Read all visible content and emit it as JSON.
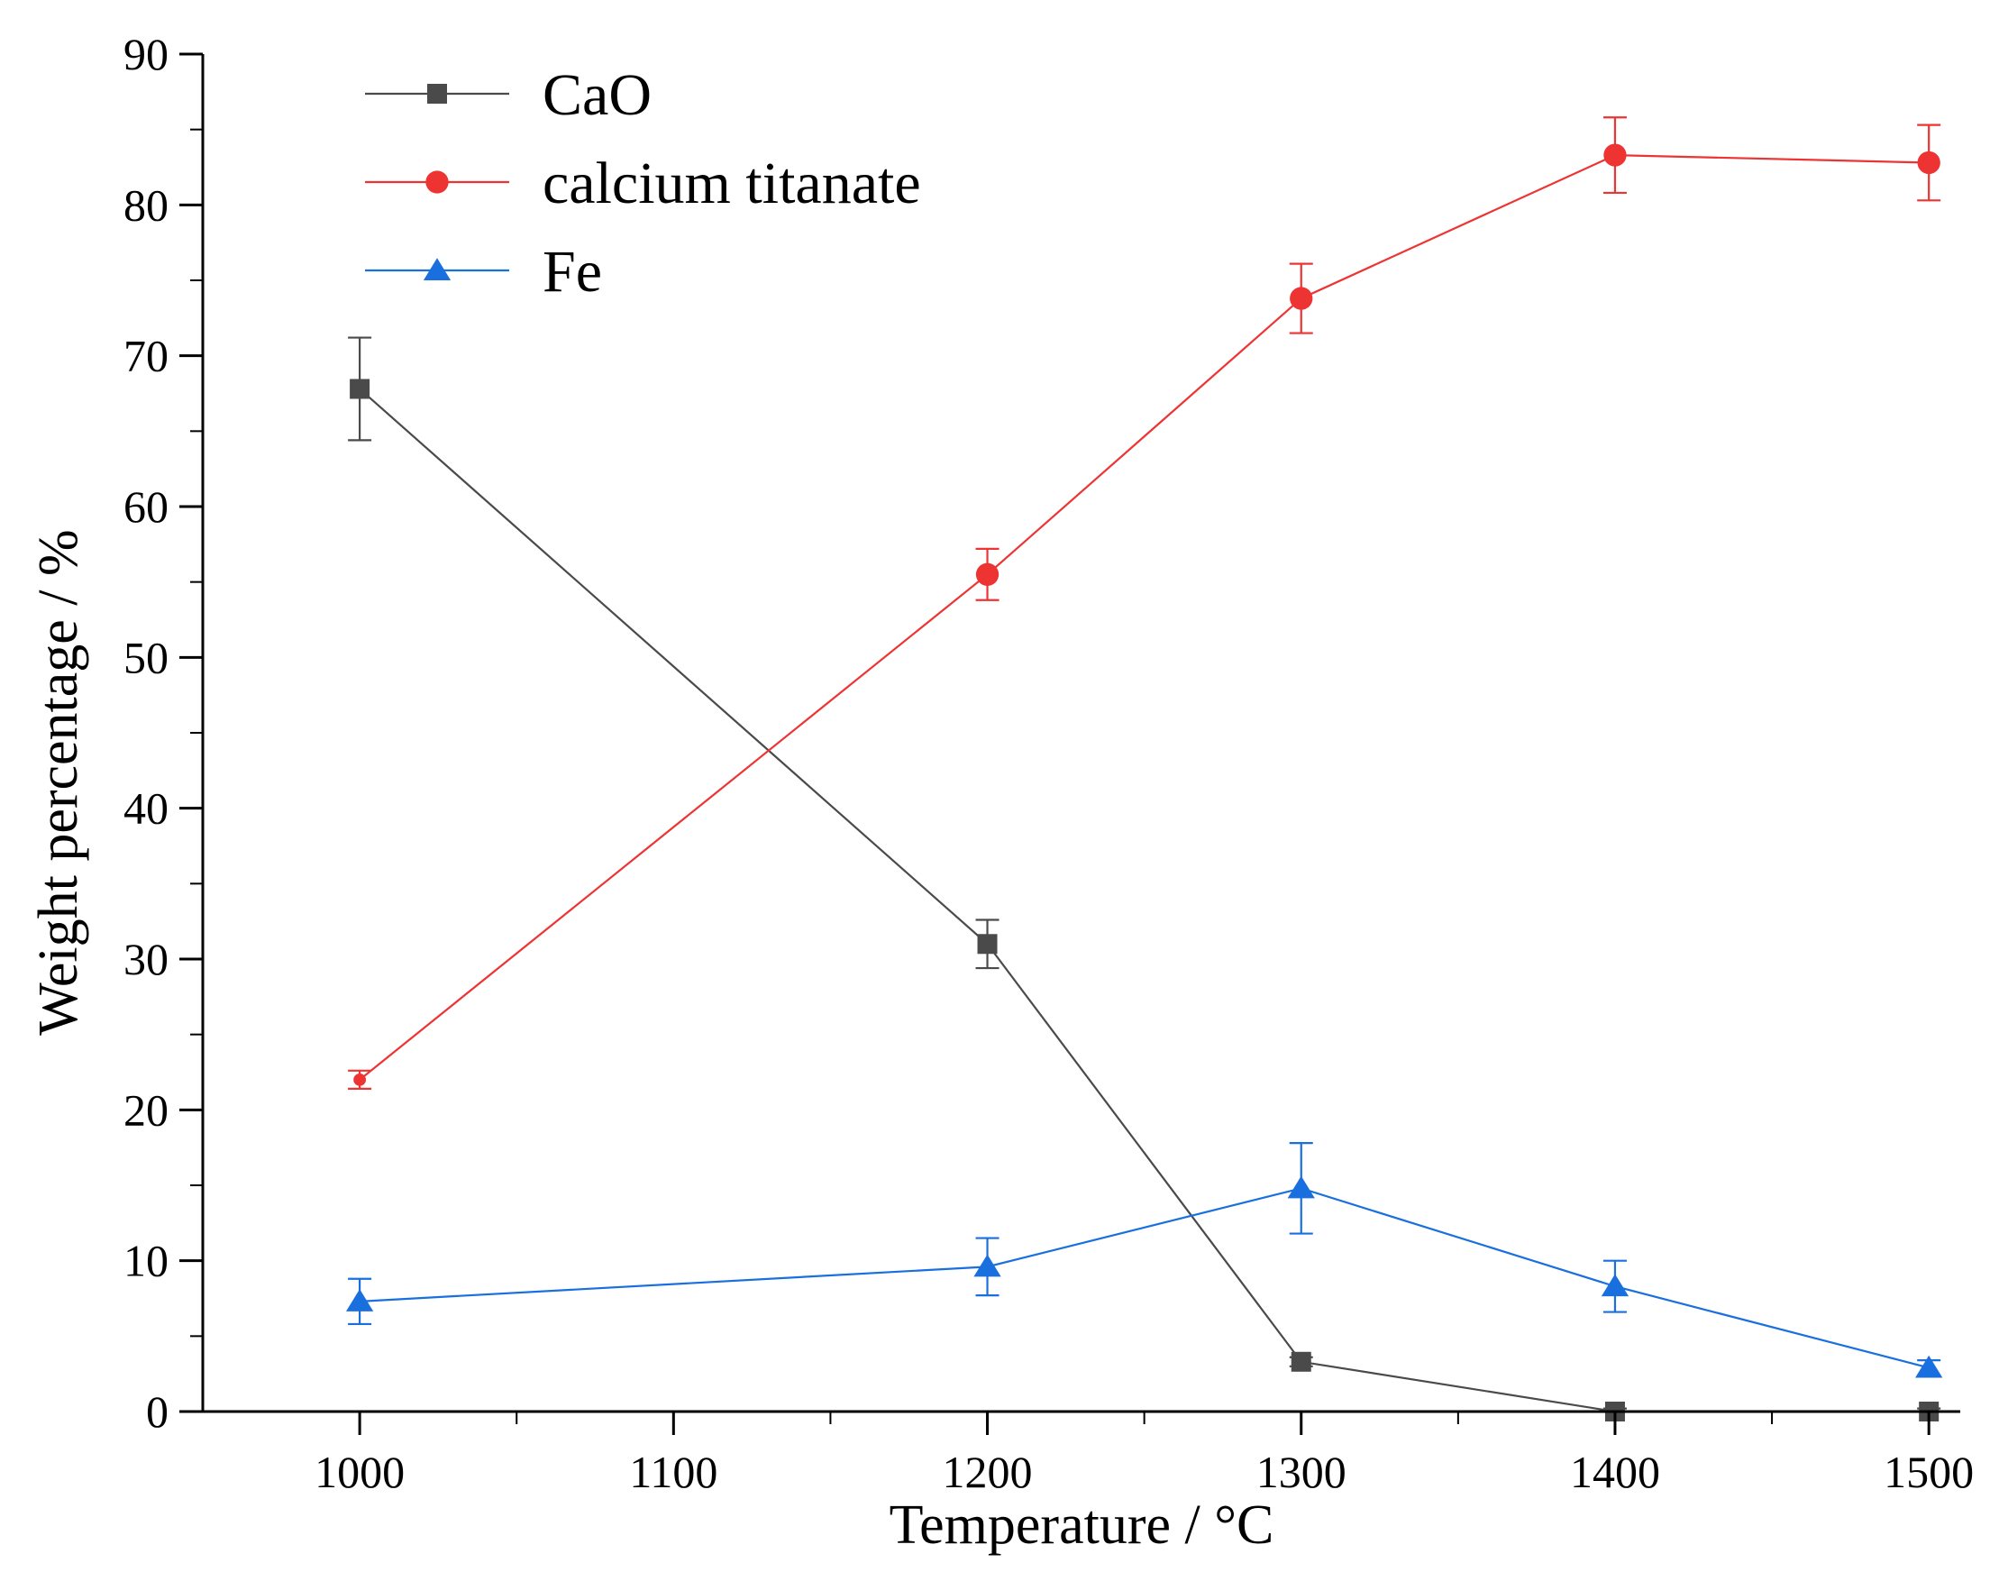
{
  "chart_data": {
    "type": "line",
    "title": "",
    "xlabel": "Temperature / °C",
    "ylabel": "Weight percentage / %",
    "xlim": [
      950,
      1510
    ],
    "ylim": [
      0,
      90
    ],
    "xticks": [
      1000,
      1100,
      1200,
      1300,
      1400,
      1500
    ],
    "yticks": [
      0,
      10,
      20,
      30,
      40,
      50,
      60,
      70,
      80,
      90
    ],
    "x": [
      1000,
      1200,
      1300,
      1400,
      1500
    ],
    "legend_position": "top-left",
    "series": [
      {
        "name": "CaO",
        "marker": "square",
        "color": "#4a4a4a",
        "values": [
          67.8,
          31.0,
          3.3,
          0.0,
          0.0
        ],
        "errors": [
          3.4,
          1.6,
          0.3,
          0.2,
          0.2
        ]
      },
      {
        "name": "calcium titanate",
        "marker": "circle",
        "color": "#ee3333",
        "values": [
          22.0,
          55.5,
          73.8,
          83.3,
          82.8
        ],
        "errors": [
          0.6,
          1.7,
          2.3,
          2.5,
          2.5
        ]
      },
      {
        "name": "Fe",
        "marker": "triangle",
        "color": "#1a6fdf",
        "values": [
          7.3,
          9.6,
          14.8,
          8.3,
          2.9
        ],
        "errors": [
          1.5,
          1.9,
          3.0,
          1.7,
          0.5
        ]
      }
    ]
  }
}
